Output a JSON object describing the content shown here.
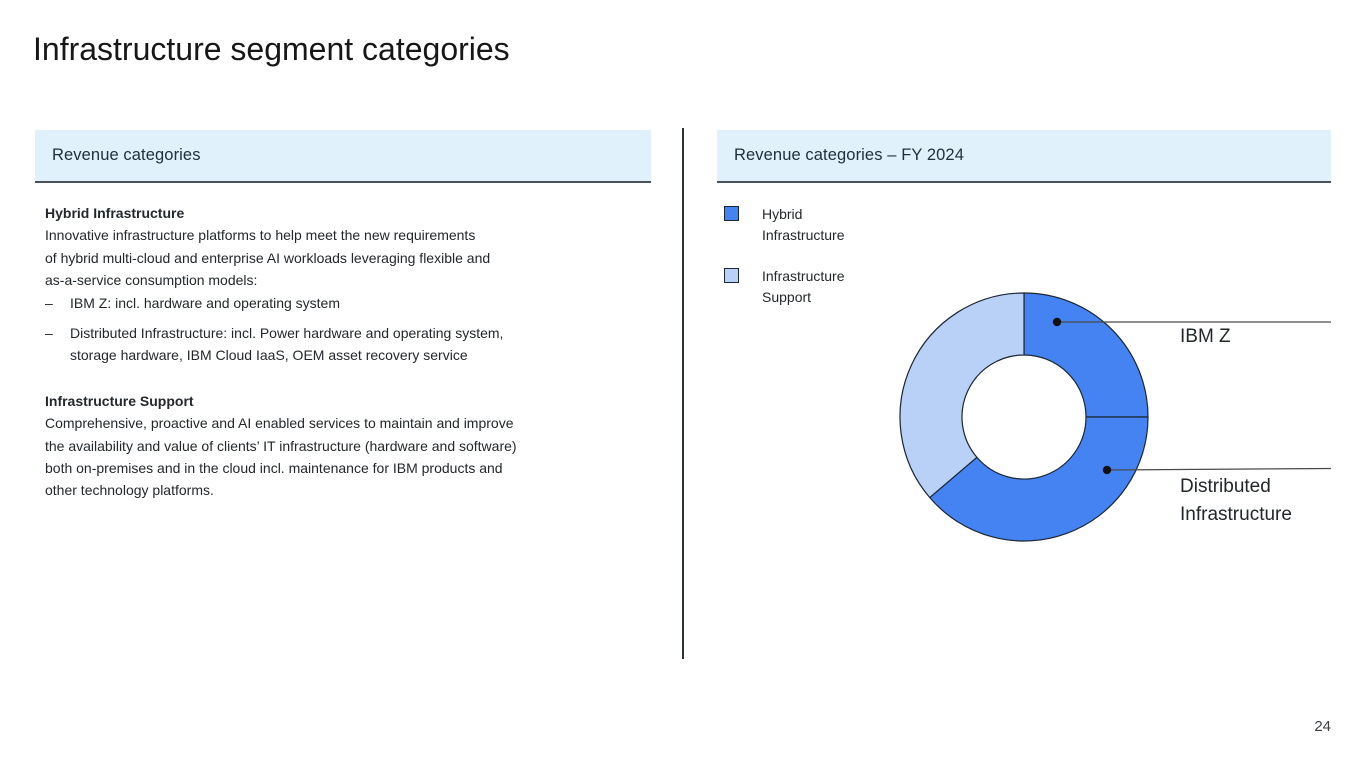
{
  "slide": {
    "title": "Infrastructure segment categories",
    "page_number": "24"
  },
  "left_panel": {
    "header": "Revenue categories",
    "bullet_char": "–",
    "section1": {
      "heading": "Hybrid Infrastructure",
      "lines": [
        "Innovative infrastructure platforms to help meet the new requirements",
        "of hybrid multi-cloud and enterprise AI workloads leveraging flexible and",
        "as-a-service consumption models:"
      ],
      "bullet1": "IBM Z: incl. hardware and operating system",
      "bullet2_lines": [
        "Distributed Infrastructure: incl. Power hardware and operating system,",
        "storage hardware, IBM Cloud IaaS, OEM asset recovery service"
      ]
    },
    "section2": {
      "heading": "Infrastructure Support",
      "lines": [
        "Comprehensive, proactive and AI enabled services to maintain and improve",
        "the availability and value of clients’ IT infrastructure (hardware and software)",
        "both on-premises and in the cloud incl. maintenance for IBM products and",
        "other technology platforms."
      ]
    }
  },
  "right_panel": {
    "header": "Revenue categories – FY 2024",
    "legend": [
      {
        "label": "Hybrid Infrastructure",
        "color": "#4583f2"
      },
      {
        "label": "Infrastructure Support",
        "color": "#b9d1f7"
      }
    ],
    "callouts": {
      "ibm_z": "IBM Z",
      "distributed": "Distributed Infrastructure"
    }
  },
  "chart_data": {
    "type": "pie",
    "subtype": "donut",
    "title": "Revenue categories – FY 2024",
    "start_angle_deg": 0,
    "direction": "clockwise",
    "stroke_color": "#1b2733",
    "legend": [
      "Hybrid Infrastructure",
      "Infrastructure Support"
    ],
    "series": [
      {
        "label": "IBM Z",
        "group": "Hybrid Infrastructure",
        "value_pct": 25.0,
        "color": "#4583f2"
      },
      {
        "label": "Distributed Infrastructure",
        "group": "Hybrid Infrastructure",
        "value_pct": 38.75,
        "color": "#4583f2"
      },
      {
        "label": "Infrastructure Support",
        "group": "Infrastructure Support",
        "value_pct": 36.25,
        "color": "#b9d1f7"
      }
    ]
  }
}
